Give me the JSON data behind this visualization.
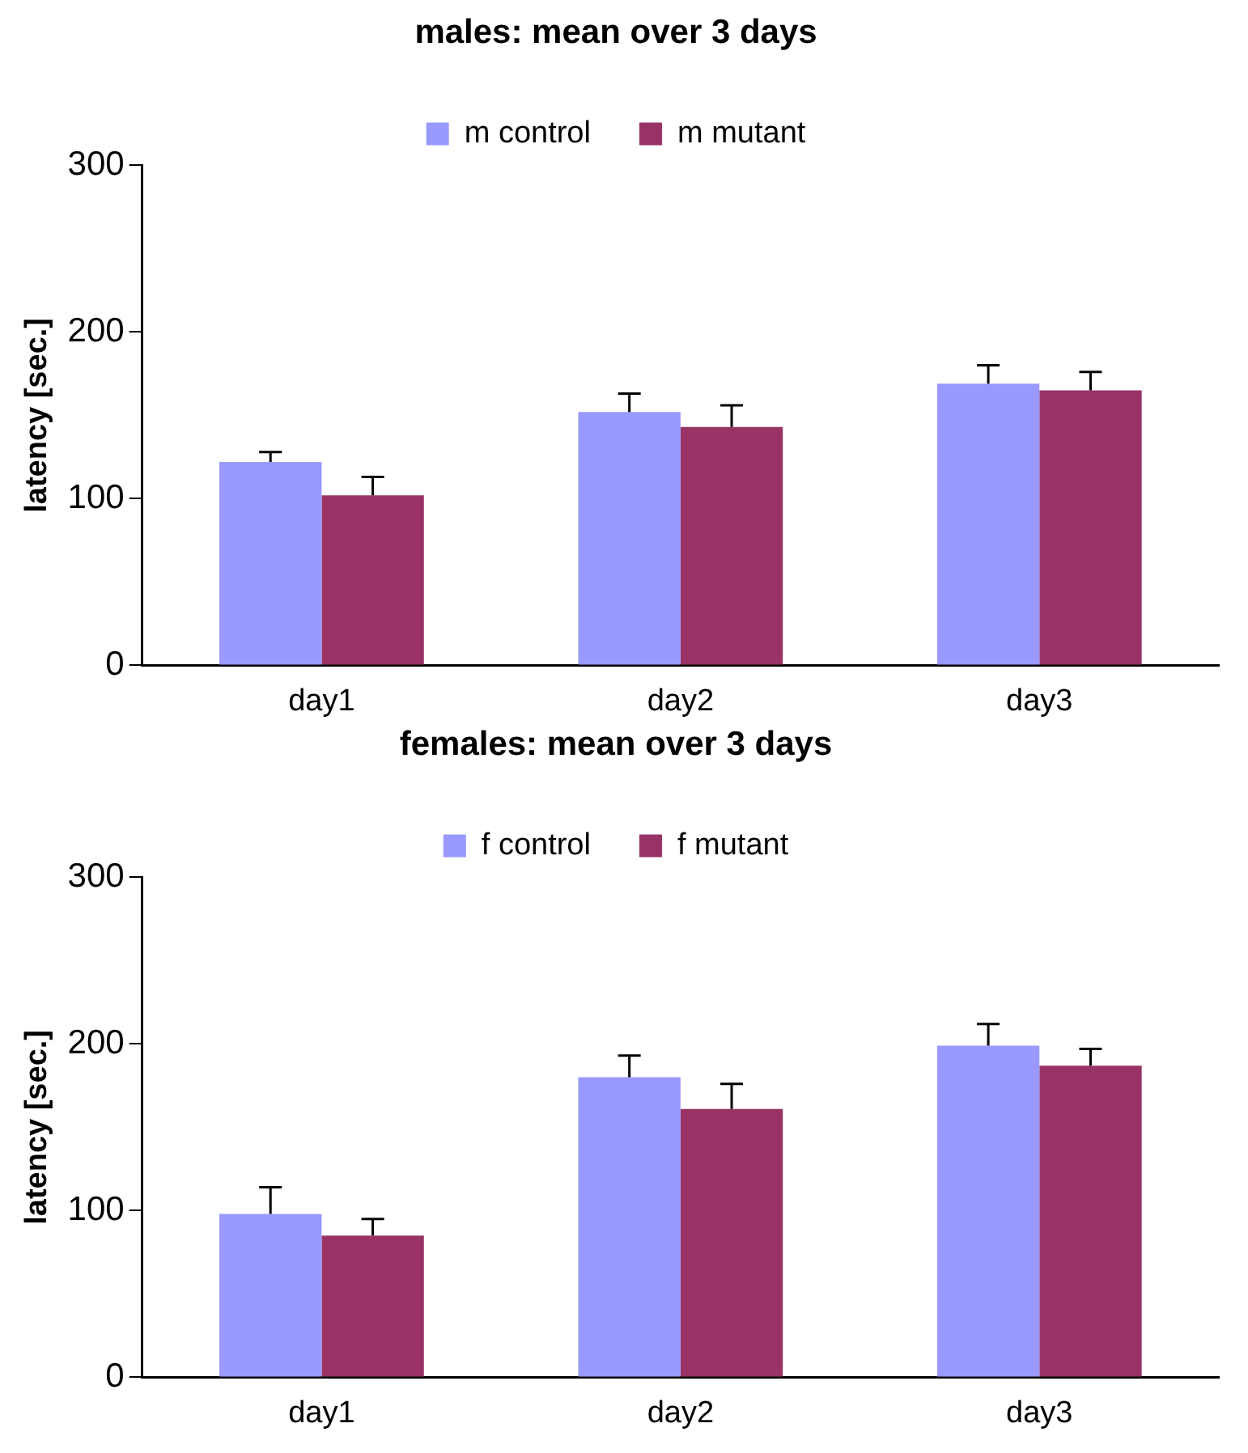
{
  "chart_data": [
    {
      "type": "bar",
      "title": "males: mean over 3 days",
      "ylabel": "latency [sec.]",
      "categories": [
        "day1",
        "day2",
        "day3"
      ],
      "ylim": [
        0,
        300
      ],
      "yticks": [
        0,
        100,
        200,
        300
      ],
      "grid": false,
      "legend": "top",
      "series": [
        {
          "name": "m control",
          "color": "#9999ff",
          "values": [
            122,
            152,
            169
          ],
          "errors": [
            [
              122,
              128
            ],
            [
              152,
              163
            ],
            [
              169,
              180
            ]
          ]
        },
        {
          "name": "m mutant",
          "color": "#993366",
          "values": [
            102,
            143,
            165
          ],
          "errors": [
            [
              102,
              113
            ],
            [
              143,
              156
            ],
            [
              165,
              176
            ]
          ]
        }
      ]
    },
    {
      "type": "bar",
      "title": "females: mean over 3 days",
      "ylabel": "latency [sec.]",
      "categories": [
        "day1",
        "day2",
        "day3"
      ],
      "ylim": [
        0,
        300
      ],
      "yticks": [
        0,
        100,
        200,
        300
      ],
      "grid": false,
      "legend": "top",
      "series": [
        {
          "name": "f control",
          "color": "#9999ff",
          "values": [
            98,
            180,
            199
          ],
          "errors": [
            [
              98,
              114
            ],
            [
              180,
              193
            ],
            [
              199,
              212
            ]
          ]
        },
        {
          "name": "f mutant",
          "color": "#993366",
          "values": [
            85,
            161,
            187
          ],
          "errors": [
            [
              85,
              95
            ],
            [
              161,
              176
            ],
            [
              187,
              197
            ]
          ]
        }
      ]
    }
  ]
}
